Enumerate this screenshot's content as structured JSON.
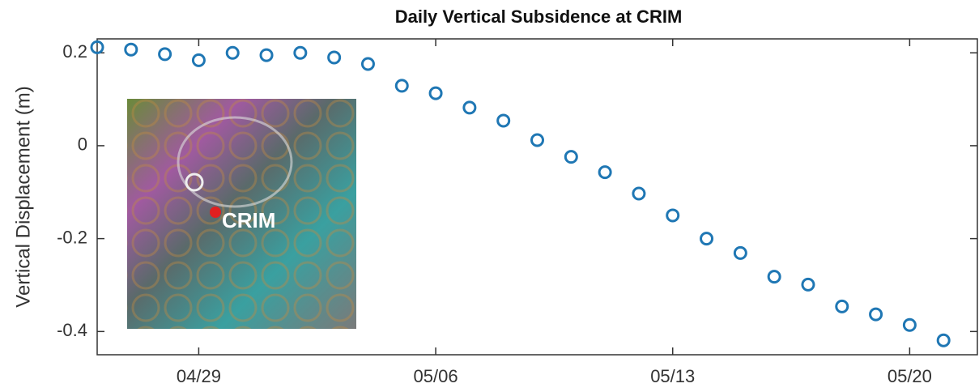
{
  "chart_data": {
    "type": "scatter",
    "title": "Daily Vertical Subsidence at CRIM",
    "ylabel": "Vertical Displacement (m)",
    "inset_label": "CRIM",
    "x": [
      "04/26",
      "04/27",
      "04/28",
      "04/29",
      "04/30",
      "05/01",
      "05/02",
      "05/03",
      "05/04",
      "05/05",
      "05/06",
      "05/07",
      "05/08",
      "05/09",
      "05/10",
      "05/11",
      "05/12",
      "05/13",
      "05/14",
      "05/15",
      "05/16",
      "05/17",
      "05/18",
      "05/19",
      "05/20",
      "05/21"
    ],
    "series": [
      {
        "color": "#1f77b4",
        "values": [
          0.212,
          0.207,
          0.197,
          0.184,
          0.2,
          0.195,
          0.2,
          0.19,
          0.176,
          0.129,
          0.113,
          0.082,
          0.054,
          0.012,
          -0.024,
          -0.057,
          -0.103,
          -0.15,
          -0.2,
          -0.231,
          -0.282,
          -0.299,
          -0.346,
          -0.363,
          -0.386,
          -0.419
        ]
      }
    ],
    "xlim": [
      "04/26",
      "05/22"
    ],
    "xticks": [
      "04/29",
      "05/06",
      "05/13",
      "05/20"
    ],
    "ylim": [
      -0.45,
      0.23
    ],
    "yticks": [
      -0.4,
      -0.2,
      0,
      0.2
    ]
  }
}
